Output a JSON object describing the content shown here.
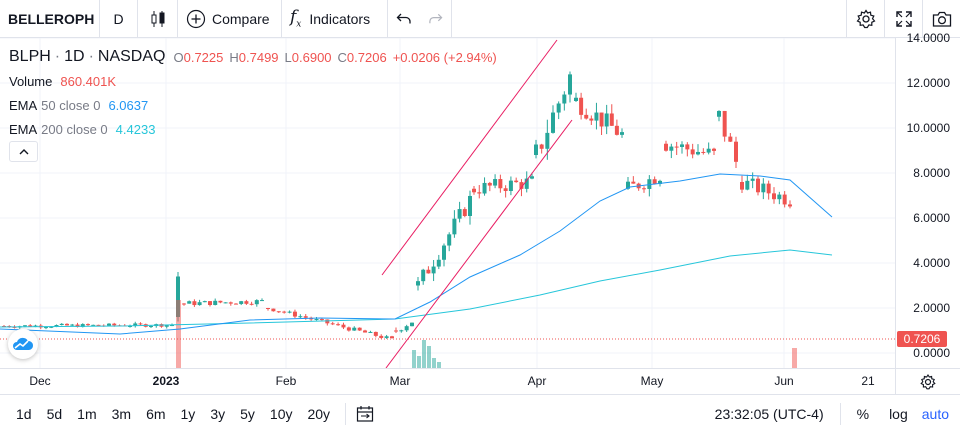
{
  "toolbar": {
    "symbol": "BELLEROPH",
    "interval": "D",
    "compare_label": "Compare",
    "indicators_label": "Indicators"
  },
  "legend": {
    "ticker": "BLPH",
    "interval": "1D",
    "exchange": "NASDAQ",
    "open_label": "O",
    "open": "0.7225",
    "high_label": "H",
    "high": "0.7499",
    "low_label": "L",
    "low": "0.6900",
    "close_label": "C",
    "close": "0.7206",
    "change": "+0.0206 (+2.94%)",
    "volume_label": "Volume",
    "volume": "860.401K",
    "ema50_label": "EMA",
    "ema50_params": "50 close 0",
    "ema50_value": "6.0637",
    "ema200_label": "EMA",
    "ema200_params": "200 close 0",
    "ema200_value": "4.4233"
  },
  "price_axis": [
    "14.0000",
    "12.0000",
    "10.0000",
    "8.0000",
    "6.0000",
    "4.0000",
    "2.0000",
    "0.0000"
  ],
  "current_price_label": "0.7206",
  "time_axis": [
    "Dec",
    "2023",
    "Feb",
    "Mar",
    "Apr",
    "May",
    "Jun",
    "21"
  ],
  "ranges": [
    "1d",
    "5d",
    "1m",
    "3m",
    "6m",
    "1y",
    "3y",
    "5y",
    "10y",
    "20y"
  ],
  "clock": "23:32:05 (UTC-4)",
  "scale_options": {
    "percent": "%",
    "log": "log",
    "auto": "auto"
  },
  "colors": {
    "up": "#26a69a",
    "down": "#ef5350",
    "ema50": "#2196f3",
    "ema200": "#26c6da",
    "channel": "#e91e63",
    "accent": "#2962ff"
  },
  "icons": [
    "candles-icon",
    "compare-plus-icon",
    "indicators-fx-icon",
    "undo-icon",
    "redo-icon",
    "settings-gear-icon",
    "fullscreen-icon",
    "camera-icon",
    "calendar-icon",
    "collapse-chevron-icon",
    "timezone-gear-icon"
  ]
}
